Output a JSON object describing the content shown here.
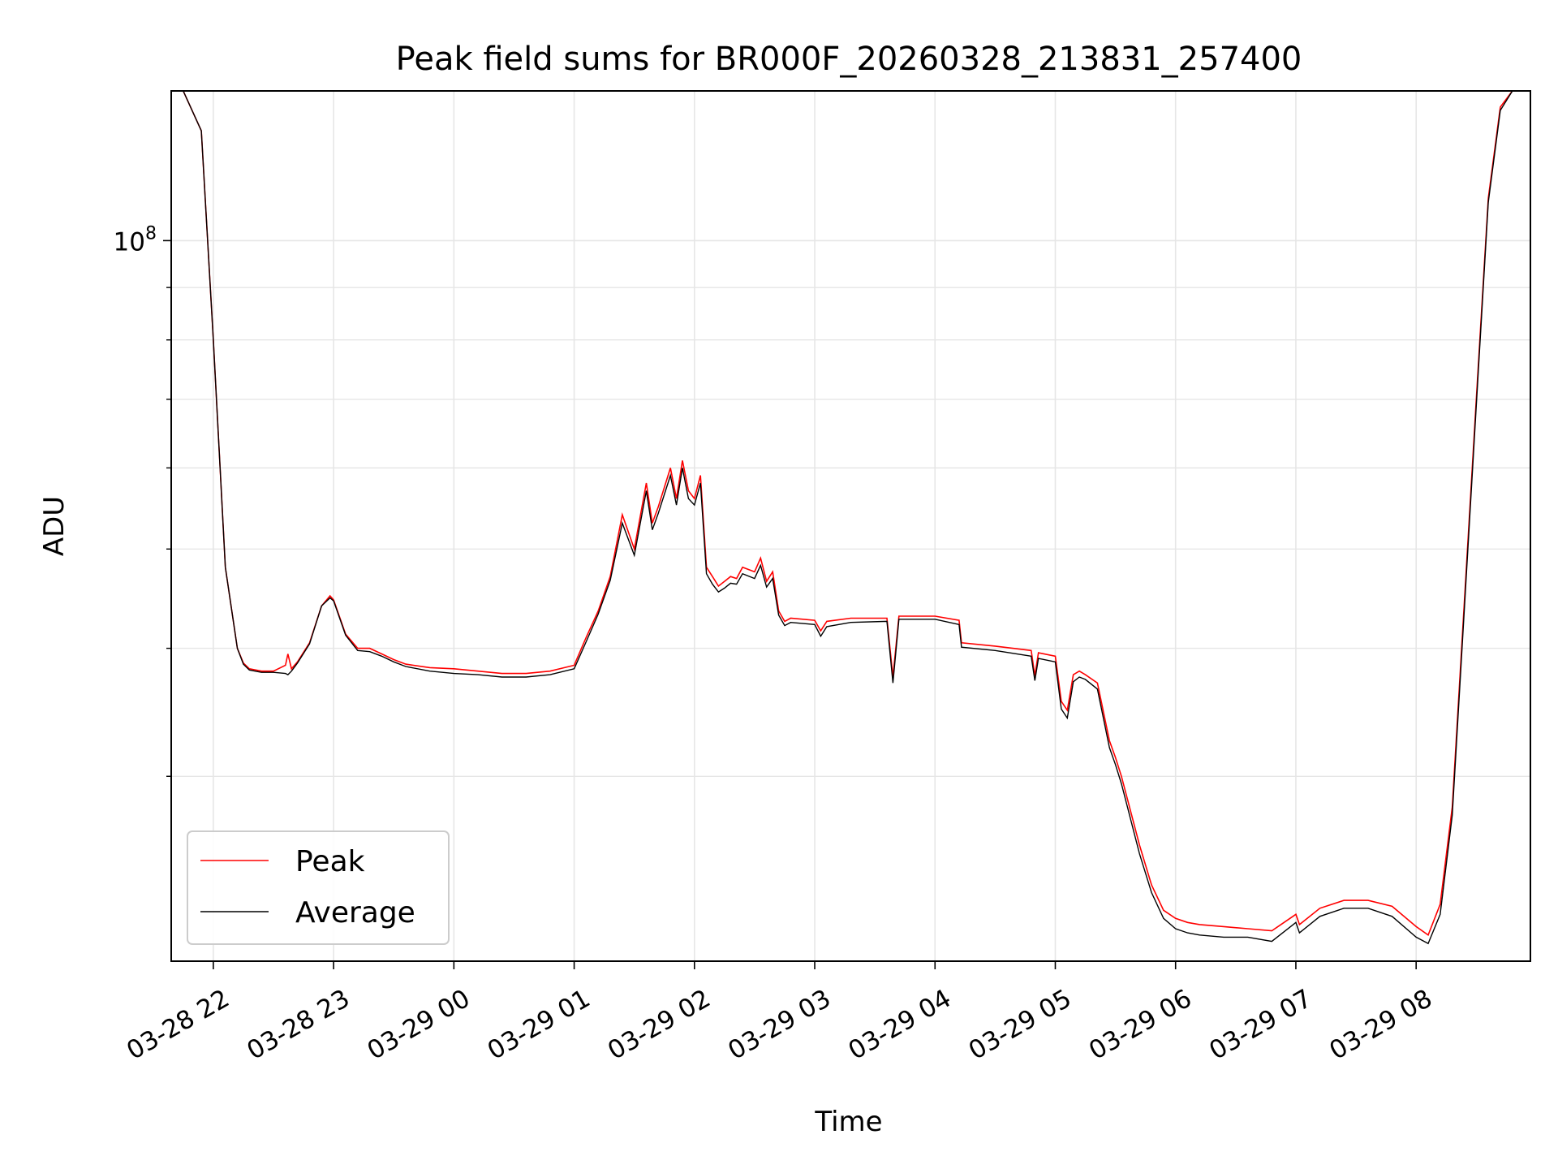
{
  "chart_data": {
    "type": "line",
    "title": "Peak field sums for BR000F_20260328_213831_257400",
    "xlabel": "Time",
    "ylabel": "ADU",
    "yscale": "log",
    "x_unit": "hours since 2026-03-28 00:00",
    "xlim": [
      21.65,
      32.95
    ],
    "ylim": [
      19800000,
      140000000
    ],
    "x_ticks": [
      {
        "value": 22,
        "label": "03-28 22"
      },
      {
        "value": 23,
        "label": "03-28 23"
      },
      {
        "value": 24,
        "label": "03-29 00"
      },
      {
        "value": 25,
        "label": "03-29 01"
      },
      {
        "value": 26,
        "label": "03-29 02"
      },
      {
        "value": 27,
        "label": "03-29 03"
      },
      {
        "value": 28,
        "label": "03-29 04"
      },
      {
        "value": 29,
        "label": "03-29 05"
      },
      {
        "value": 30,
        "label": "03-29 06"
      },
      {
        "value": 31,
        "label": "03-29 07"
      },
      {
        "value": 32,
        "label": "03-29 08"
      }
    ],
    "y_major_ticks": [
      {
        "value": 100000000,
        "base": "10",
        "exp": "8"
      }
    ],
    "y_minor_ticks": [
      30000000,
      40000000,
      50000000,
      60000000,
      70000000,
      80000000,
      90000000,
      200000000
    ],
    "grid": true,
    "legend_position": "lower-left",
    "x": [
      21.75,
      21.9,
      22.0,
      22.1,
      22.2,
      22.25,
      22.3,
      22.4,
      22.5,
      22.6,
      22.62,
      22.65,
      22.7,
      22.8,
      22.9,
      22.97,
      23.0,
      23.1,
      23.2,
      23.3,
      23.4,
      23.5,
      23.6,
      23.8,
      24.0,
      24.2,
      24.4,
      24.6,
      24.8,
      25.0,
      25.1,
      25.2,
      25.3,
      25.4,
      25.5,
      25.6,
      25.65,
      25.7,
      25.8,
      25.85,
      25.9,
      25.95,
      26.0,
      26.05,
      26.1,
      26.15,
      26.2,
      26.25,
      26.3,
      26.35,
      26.4,
      26.5,
      26.55,
      26.6,
      26.65,
      26.7,
      26.75,
      26.8,
      27.0,
      27.05,
      27.1,
      27.3,
      27.6,
      27.65,
      27.7,
      27.8,
      28.0,
      28.2,
      28.22,
      28.5,
      28.8,
      28.83,
      28.86,
      29.0,
      29.05,
      29.1,
      29.15,
      29.2,
      29.25,
      29.35,
      29.45,
      29.5,
      29.55,
      29.6,
      29.7,
      29.8,
      29.9,
      30.0,
      30.1,
      30.2,
      30.4,
      30.6,
      30.8,
      31.0,
      31.03,
      31.2,
      31.4,
      31.6,
      31.8,
      32.0,
      32.1,
      32.2,
      32.3,
      32.5,
      32.6,
      32.7,
      32.8
    ],
    "series": [
      {
        "name": "Peak",
        "color": "#ff0000",
        "values": [
          140000000,
          128000000,
          80000000,
          48000000,
          40000000,
          38700000,
          38200000,
          38000000,
          38000000,
          38500000,
          39500000,
          38200000,
          38800000,
          40500000,
          44000000,
          45000000,
          44600000,
          41300000,
          40000000,
          40000000,
          39500000,
          39000000,
          38600000,
          38300000,
          38200000,
          38000000,
          37800000,
          37800000,
          38000000,
          38500000,
          41000000,
          43500000,
          47000000,
          54000000,
          50000000,
          58000000,
          53000000,
          55000000,
          60000000,
          56000000,
          61000000,
          57000000,
          56000000,
          59000000,
          48000000,
          47000000,
          46000000,
          46500000,
          47000000,
          46800000,
          48000000,
          47500000,
          49000000,
          46500000,
          47500000,
          43500000,
          42500000,
          42800000,
          42600000,
          41600000,
          42500000,
          42800000,
          42800000,
          37500000,
          43000000,
          43000000,
          43000000,
          42600000,
          40500000,
          40200000,
          39800000,
          37600000,
          39600000,
          39300000,
          35500000,
          34800000,
          37700000,
          38000000,
          37700000,
          37000000,
          32500000,
          31300000,
          30000000,
          28500000,
          25700000,
          23500000,
          22200000,
          21800000,
          21600000,
          21500000,
          21400000,
          21300000,
          21200000,
          22000000,
          21500000,
          22300000,
          22700000,
          22700000,
          22400000,
          21400000,
          21000000,
          22500000,
          28000000,
          70000000,
          110000000,
          135000000,
          140000000
        ]
      },
      {
        "name": "Average",
        "color": "#000000",
        "values": [
          140000000,
          128000000,
          80000000,
          48000000,
          40000000,
          38600000,
          38100000,
          37900000,
          37900000,
          37800000,
          37700000,
          38000000,
          38700000,
          40400000,
          44000000,
          44800000,
          44500000,
          41200000,
          39800000,
          39700000,
          39300000,
          38800000,
          38400000,
          38000000,
          37800000,
          37700000,
          37500000,
          37500000,
          37700000,
          38200000,
          40600000,
          43200000,
          46600000,
          53000000,
          49300000,
          57000000,
          52200000,
          54200000,
          59000000,
          55200000,
          60000000,
          56000000,
          55200000,
          58000000,
          47300000,
          46200000,
          45400000,
          45800000,
          46300000,
          46200000,
          47300000,
          46800000,
          48200000,
          45900000,
          46800000,
          43100000,
          42100000,
          42400000,
          42200000,
          41100000,
          42000000,
          42400000,
          42500000,
          37000000,
          42700000,
          42700000,
          42700000,
          42200000,
          40100000,
          39800000,
          39300000,
          37200000,
          39100000,
          38800000,
          34900000,
          34200000,
          37100000,
          37500000,
          37300000,
          36500000,
          32000000,
          30800000,
          29500000,
          28000000,
          25200000,
          23100000,
          21800000,
          21300000,
          21100000,
          21000000,
          20900000,
          20900000,
          20700000,
          21600000,
          21100000,
          21900000,
          22300000,
          22300000,
          21900000,
          20900000,
          20600000,
          22000000,
          27500000,
          69000000,
          109000000,
          134000000,
          140000000
        ]
      }
    ]
  }
}
